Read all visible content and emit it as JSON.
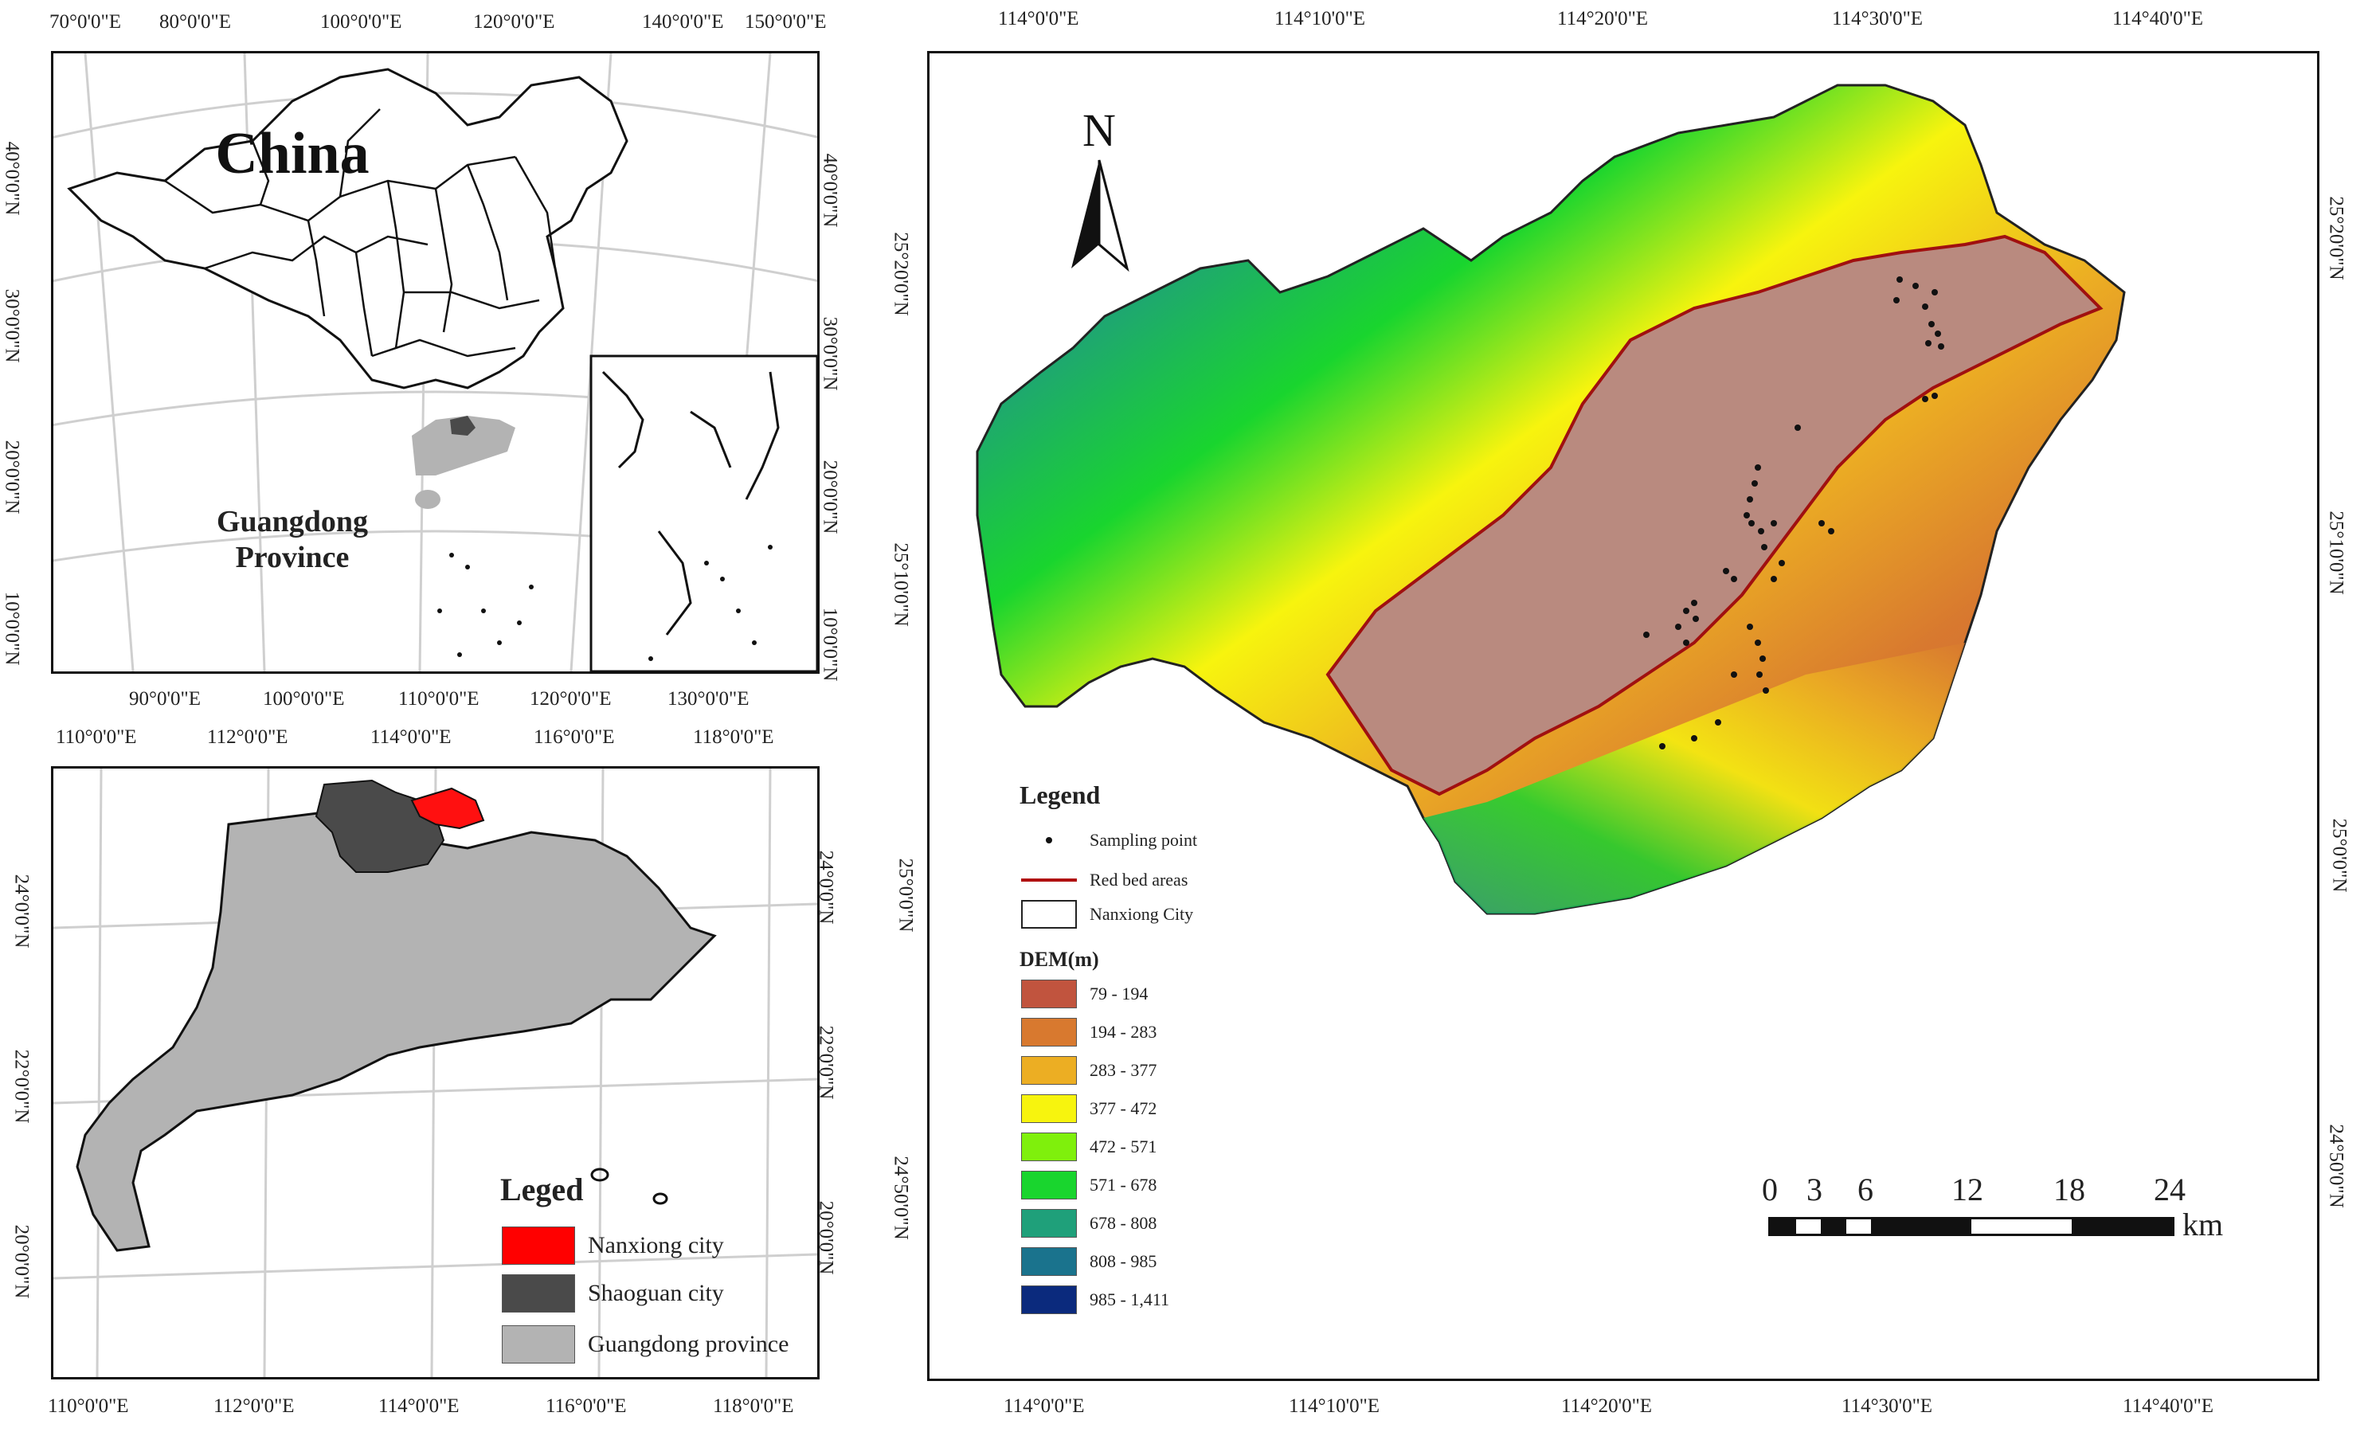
{
  "top_left_map": {
    "title": "China",
    "label": "Guangdong\nProvince",
    "x_ticks_top": [
      "70°0'0\"E",
      "80°0'0\"E",
      "100°0'0\"E",
      "120°0'0\"E",
      "140°0'0\"E",
      "150°0'0\"E"
    ],
    "x_ticks_bottom": [
      "90°0'0\"E",
      "100°0'0\"E",
      "110°0'0\"E",
      "120°0'0\"E",
      "130°0'0\"E"
    ],
    "y_ticks_left": [
      "40°0'0\"N",
      "30°0'0\"N",
      "20°0'0\"N",
      "10°0'0\"N"
    ],
    "y_ticks_right": [
      "40°0'0\"N",
      "30°0'0\"N",
      "20°0'0\"N",
      "10°0'0\"N"
    ]
  },
  "bottom_left_map": {
    "x_ticks_top": [
      "110°0'0\"E",
      "112°0'0\"E",
      "114°0'0\"E",
      "116°0'0\"E",
      "118°0'0\"E"
    ],
    "x_ticks_bottom": [
      "110°0'0\"E",
      "112°0'0\"E",
      "114°0'0\"E",
      "116°0'0\"E",
      "118°0'0\"E"
    ],
    "y_ticks_left": [
      "24°0'0\"N",
      "22°0'0\"N",
      "20°0'0\"N"
    ],
    "y_ticks_right": [
      "24°0'0\"N",
      "22°0'0\"N",
      "20°0'0\"N"
    ],
    "legend_title": "Leged",
    "legend_items": [
      {
        "label": "Nanxiong city",
        "color": "#ff0000"
      },
      {
        "label": "Shaoguan city",
        "color": "#4a4a4a"
      },
      {
        "label": "Guangdong province",
        "color": "#b3b3b3"
      }
    ]
  },
  "main_map": {
    "north": "N",
    "x_ticks_top": [
      "114°0'0\"E",
      "114°10'0\"E",
      "114°20'0\"E",
      "114°30'0\"E",
      "114°40'0\"E"
    ],
    "x_ticks_bottom": [
      "114°0'0\"E",
      "114°10'0\"E",
      "114°20'0\"E",
      "114°30'0\"E",
      "114°40'0\"E"
    ],
    "y_ticks_left": [
      "25°20'0\"N",
      "25°10'0\"N",
      "25°0'0\"N",
      "24°50'0\"N"
    ],
    "y_ticks_right": [
      "25°20'0\"N",
      "25°10'0\"N",
      "25°0'0\"N",
      "24°50'0\"N"
    ],
    "legend": {
      "title": "Legend",
      "items": [
        {
          "label": "Sampling point"
        },
        {
          "label": "Red bed areas",
          "color": "#b01010"
        },
        {
          "label": "Nanxiong City"
        }
      ],
      "dem_title": "DEM(m)",
      "dem_classes": [
        {
          "label": "79 - 194",
          "color": "#c1543e"
        },
        {
          "label": "194 - 283",
          "color": "#d8792f"
        },
        {
          "label": "283 - 377",
          "color": "#ecae23"
        },
        {
          "label": "377 - 472",
          "color": "#f7f40e"
        },
        {
          "label": "472 - 571",
          "color": "#7ff00c"
        },
        {
          "label": "571 - 678",
          "color": "#19d52e"
        },
        {
          "label": "678 - 808",
          "color": "#1fa07a"
        },
        {
          "label": "808 - 985",
          "color": "#1a738d"
        },
        {
          "label": "985 - 1,411",
          "color": "#0b2a7d"
        }
      ]
    },
    "scale_bar": {
      "labels": [
        "0",
        "3",
        "6",
        "12",
        "18",
        "24"
      ],
      "unit": "km"
    }
  }
}
